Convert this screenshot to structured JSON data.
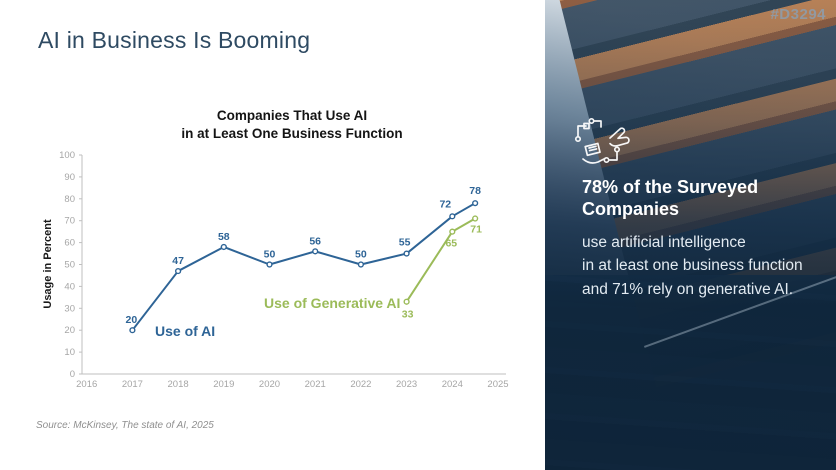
{
  "slide": {
    "title": "AI in Business Is Booming",
    "source": "Source: McKinsey, The state of AI, 2025"
  },
  "colors": {
    "title_blue": "#2e4a62",
    "ai_blue": "#2e6496",
    "genai_green": "#9bbb59",
    "axis_gray": "#bfbfbf",
    "tick_gray": "#a6a6a6",
    "panel_navy": "#142e46"
  },
  "chart_data": {
    "type": "line",
    "title": "Companies That Use AI in at Least One Business Function",
    "title_lines": [
      "Companies That Use AI",
      "in at Least One Business Function"
    ],
    "xlabel": "",
    "ylabel": "Usage in Percent",
    "ylim": [
      0,
      100
    ],
    "ytick_step": 10,
    "xticks": [
      2016,
      2017,
      2018,
      2019,
      2020,
      2021,
      2022,
      2023,
      2024,
      2025
    ],
    "grid": false,
    "legend_position": "inline-annotations",
    "series": [
      {
        "name": "Use of AI",
        "color": "#2e6496",
        "x": [
          2017,
          2018,
          2019,
          2020,
          2021,
          2022,
          2023,
          2024,
          2024.5
        ],
        "values": [
          20,
          47,
          58,
          50,
          56,
          50,
          55,
          72,
          78
        ],
        "label_offsets": [
          [
            -1,
            -7
          ],
          [
            0,
            -7
          ],
          [
            0,
            -7
          ],
          [
            0,
            -7
          ],
          [
            0,
            -7
          ],
          [
            0,
            -7
          ],
          [
            -2,
            -8
          ],
          [
            -7,
            -9
          ],
          [
            0,
            -9
          ]
        ],
        "annotation": {
          "text": "Use of AI",
          "x": 119,
          "y": 188
        }
      },
      {
        "name": "Use of Generative AI",
        "color": "#9bbb59",
        "x": [
          2023,
          2024,
          2024.5
        ],
        "values": [
          33,
          65,
          71
        ],
        "label_offsets": [
          [
            1,
            16
          ],
          [
            -1,
            15
          ],
          [
            1,
            14
          ]
        ],
        "annotation": {
          "text": "Use of Generative AI",
          "x": 228,
          "y": 160
        }
      }
    ]
  },
  "panel": {
    "watermark": "#D3294",
    "icon": "hands-circuit-ai-icon",
    "heading_lines": [
      "78% of the Surveyed",
      "Companies"
    ],
    "body_lines": [
      "use artificial intelligence",
      "in at least one business function",
      "and 71% rely on generative AI."
    ]
  }
}
